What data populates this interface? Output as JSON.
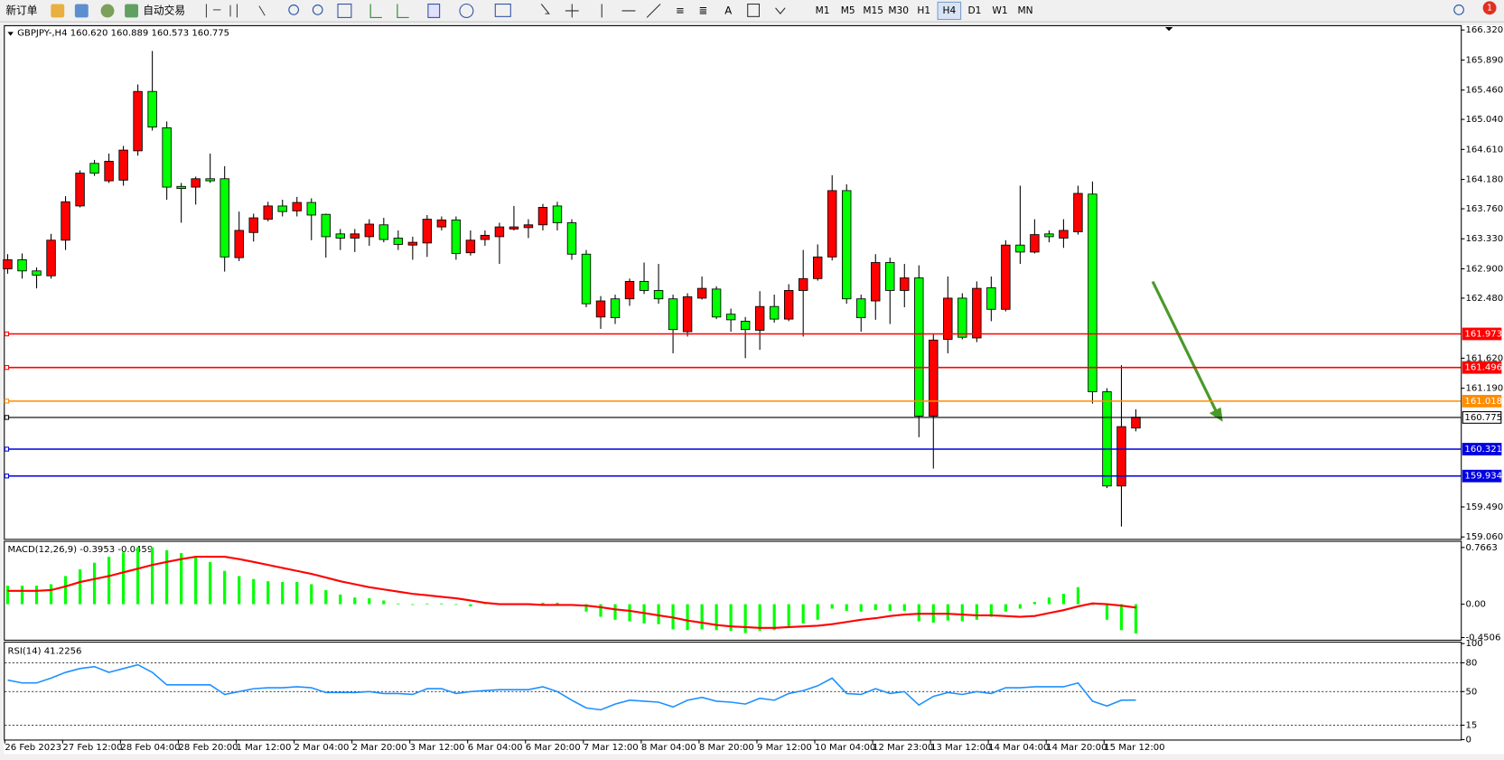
{
  "toolbar": {
    "new_order": "新订单",
    "auto_trading": "自动交易",
    "timeframes": [
      "M1",
      "M5",
      "M15",
      "M30",
      "H1",
      "H4",
      "D1",
      "W1",
      "MN"
    ],
    "active_timeframe": "H4",
    "notifications": "1"
  },
  "chart_data": [
    {
      "type": "candlestick",
      "title": "GBPJPY-,H4  160.620 160.889 160.573 160.775",
      "categories": [
        "26 Feb 2023",
        null,
        null,
        null,
        "27 Feb 12:00",
        null,
        null,
        null,
        "28 Feb 04:00",
        null,
        null,
        null,
        "28 Feb 20:00",
        null,
        null,
        null,
        "1 Mar 12:00",
        null,
        null,
        null,
        "2 Mar 04:00",
        null,
        null,
        null,
        "2 Mar 20:00",
        null,
        null,
        null,
        "3 Mar 12:00",
        null,
        null,
        null,
        "6 Mar 04:00",
        null,
        null,
        null,
        "6 Mar 20:00",
        null,
        null,
        null,
        "7 Mar 12:00",
        null,
        null,
        null,
        "8 Mar 04:00",
        null,
        null,
        null,
        "8 Mar 20:00",
        null,
        null,
        null,
        "9 Mar 12:00",
        null,
        null,
        null,
        "10 Mar 04:00",
        null,
        null,
        null,
        "12 Mar 23:00",
        null,
        null,
        null,
        "13 Mar 12:00",
        null,
        null,
        null,
        "14 Mar 04:00",
        null,
        null,
        null,
        "14 Mar 20:00",
        null,
        null,
        null,
        "15 Mar 12:00",
        null,
        null
      ],
      "open": [
        162.9,
        163.03,
        162.87,
        162.8,
        163.31,
        163.8,
        164.41,
        164.16,
        164.17,
        164.59,
        165.44,
        164.92,
        164.08,
        164.07,
        164.19,
        164.19,
        163.06,
        163.42,
        163.61,
        163.8,
        163.73,
        163.85,
        163.68,
        163.4,
        163.34,
        163.36,
        163.53,
        163.34,
        163.24,
        163.27,
        163.5,
        163.6,
        163.13,
        163.32,
        163.36,
        163.47,
        163.49,
        163.53,
        163.8,
        163.56,
        163.11,
        162.21,
        162.47,
        162.47,
        162.72,
        162.59,
        162.47,
        162.0,
        162.48,
        162.61,
        162.25,
        162.15,
        162.02,
        162.36,
        162.18,
        162.59,
        162.76,
        163.07,
        164.02,
        162.47,
        162.44,
        162.99,
        162.59,
        162.77,
        160.79,
        161.89,
        162.48,
        161.91,
        162.63,
        162.32,
        163.24,
        163.14,
        163.4,
        163.34,
        163.43,
        163.97,
        161.14,
        159.79,
        160.62
      ],
      "high": [
        163.11,
        163.12,
        162.92,
        163.4,
        163.94,
        164.31,
        164.46,
        164.55,
        164.66,
        165.54,
        166.02,
        165.01,
        164.13,
        164.22,
        164.55,
        164.37,
        163.72,
        163.69,
        163.86,
        163.89,
        163.93,
        163.91,
        163.69,
        163.47,
        163.47,
        163.61,
        163.63,
        163.45,
        163.36,
        163.67,
        163.65,
        163.65,
        163.45,
        163.45,
        163.56,
        163.8,
        163.61,
        163.83,
        163.86,
        163.61,
        163.17,
        162.51,
        162.53,
        162.76,
        162.99,
        162.97,
        162.53,
        162.55,
        162.79,
        162.65,
        162.33,
        162.21,
        162.58,
        162.53,
        162.68,
        163.17,
        163.25,
        164.24,
        164.11,
        162.53,
        163.11,
        163.06,
        162.97,
        162.95,
        161.96,
        162.79,
        162.55,
        162.72,
        162.79,
        163.31,
        164.09,
        163.61,
        163.45,
        163.61,
        164.09,
        164.15,
        161.19,
        161.52,
        160.889
      ],
      "low": [
        162.83,
        162.76,
        162.62,
        162.76,
        163.17,
        163.78,
        164.23,
        164.13,
        164.09,
        164.52,
        164.88,
        163.89,
        163.56,
        163.82,
        164.13,
        162.86,
        163.01,
        163.29,
        163.58,
        163.65,
        163.65,
        163.31,
        163.06,
        163.17,
        163.14,
        163.23,
        163.28,
        163.17,
        163.03,
        163.07,
        163.45,
        163.03,
        163.09,
        163.23,
        162.97,
        163.45,
        163.34,
        163.45,
        163.45,
        163.03,
        162.35,
        162.04,
        162.11,
        162.37,
        162.54,
        162.4,
        161.69,
        161.93,
        162.46,
        162.18,
        162.0,
        161.62,
        161.74,
        162.13,
        162.15,
        161.93,
        162.73,
        163.02,
        162.4,
        162.0,
        162.17,
        162.11,
        162.35,
        160.49,
        160.04,
        161.69,
        161.89,
        161.85,
        162.15,
        162.29,
        162.97,
        163.12,
        163.28,
        163.2,
        163.39,
        160.97,
        159.76,
        159.21,
        160.573
      ],
      "close": [
        163.03,
        162.87,
        162.81,
        163.31,
        163.86,
        164.27,
        164.27,
        164.44,
        164.6,
        165.44,
        164.93,
        164.07,
        164.05,
        164.19,
        164.16,
        163.07,
        163.45,
        163.63,
        163.8,
        163.72,
        163.85,
        163.67,
        163.36,
        163.34,
        163.4,
        163.54,
        163.32,
        163.25,
        163.28,
        163.61,
        163.6,
        163.12,
        163.31,
        163.38,
        163.5,
        163.5,
        163.53,
        163.78,
        163.56,
        163.11,
        162.4,
        162.44,
        162.2,
        162.72,
        162.59,
        162.47,
        162.03,
        162.5,
        162.62,
        162.21,
        162.17,
        162.03,
        162.36,
        162.18,
        162.59,
        162.76,
        163.07,
        164.02,
        162.47,
        162.2,
        162.99,
        162.59,
        162.77,
        160.79,
        161.88,
        162.48,
        161.92,
        162.62,
        162.32,
        163.24,
        163.14,
        163.39,
        163.36,
        163.45,
        163.98,
        161.14,
        159.79,
        160.64,
        160.775
      ],
      "up_color": "#ff0000",
      "down_color": "#00ff00",
      "ylim": [
        159.032,
        166.375
      ],
      "yticks": [
        {
          "value": 166.32,
          "label": "166.320"
        },
        {
          "value": 165.89,
          "label": "165.890"
        },
        {
          "value": 165.46,
          "label": "165.460"
        },
        {
          "value": 165.04,
          "label": "165.040"
        },
        {
          "value": 164.61,
          "label": "164.610"
        },
        {
          "value": 164.18,
          "label": "164.180"
        },
        {
          "value": 163.76,
          "label": "163.760"
        },
        {
          "value": 163.33,
          "label": "163.330"
        },
        {
          "value": 162.9,
          "label": "162.900"
        },
        {
          "value": 162.48,
          "label": "162.480"
        },
        {
          "value": 161.62,
          "label": "161.620"
        },
        {
          "value": 161.19,
          "label": "161.190"
        },
        {
          "value": 159.49,
          "label": "159.490"
        },
        {
          "value": 159.06,
          "label": "159.060"
        }
      ],
      "hlines": [
        {
          "value": 161.973,
          "color": "#ff0000"
        },
        {
          "value": 161.496,
          "color": "#ff0000"
        },
        {
          "value": 161.018,
          "color": "#ff8c00"
        },
        {
          "value": 160.775,
          "color": "#000000"
        },
        {
          "value": 160.321,
          "color": "#0000e0"
        },
        {
          "value": 159.934,
          "color": "#0000e0"
        }
      ]
    },
    {
      "type": "macd",
      "title": "MACD(12,26,9) -0.3953 -0.0459",
      "histogram": {
        "color": "#00ff00",
        "values": [
          0.25,
          0.25,
          0.25,
          0.27,
          0.38,
          0.47,
          0.56,
          0.64,
          0.7,
          0.77,
          0.77,
          0.73,
          0.69,
          0.64,
          0.57,
          0.45,
          0.38,
          0.34,
          0.31,
          0.3,
          0.3,
          0.27,
          0.19,
          0.13,
          0.09,
          0.08,
          0.05,
          0.01,
          -0.01,
          0.01,
          0.01,
          -0.01,
          -0.03,
          0.0,
          0.0,
          0.01,
          0.01,
          0.02,
          0.02,
          0.0,
          -0.1,
          -0.17,
          -0.21,
          -0.23,
          -0.26,
          -0.27,
          -0.34,
          -0.35,
          -0.34,
          -0.35,
          -0.36,
          -0.39,
          -0.36,
          -0.35,
          -0.31,
          -0.26,
          -0.21,
          -0.06,
          -0.09,
          -0.1,
          -0.08,
          -0.09,
          -0.09,
          -0.23,
          -0.25,
          -0.22,
          -0.23,
          -0.21,
          -0.17,
          -0.1,
          -0.06,
          0.03,
          0.09,
          0.14,
          0.23,
          -0.01,
          -0.21,
          -0.35,
          -0.3953
        ]
      },
      "signal": {
        "color": "#ff0000",
        "values": [
          0.18,
          0.18,
          0.18,
          0.19,
          0.24,
          0.3,
          0.34,
          0.38,
          0.43,
          0.48,
          0.53,
          0.57,
          0.61,
          0.64,
          0.64,
          0.64,
          0.61,
          0.57,
          0.53,
          0.49,
          0.45,
          0.41,
          0.36,
          0.31,
          0.27,
          0.23,
          0.2,
          0.17,
          0.14,
          0.12,
          0.1,
          0.08,
          0.05,
          0.02,
          0.0,
          0.0,
          0.0,
          -0.01,
          -0.01,
          -0.01,
          -0.02,
          -0.04,
          -0.07,
          -0.09,
          -0.12,
          -0.15,
          -0.18,
          -0.22,
          -0.25,
          -0.28,
          -0.3,
          -0.31,
          -0.32,
          -0.32,
          -0.31,
          -0.3,
          -0.29,
          -0.27,
          -0.24,
          -0.21,
          -0.19,
          -0.16,
          -0.14,
          -0.13,
          -0.13,
          -0.13,
          -0.14,
          -0.15,
          -0.15,
          -0.16,
          -0.17,
          -0.16,
          -0.12,
          -0.08,
          -0.03,
          0.01,
          0.0,
          -0.02,
          -0.0459
        ]
      },
      "ylim": [
        -0.48,
        0.83
      ],
      "yticks": [
        0.7663,
        {
          "value": 0,
          "label": "0.00"
        },
        -0.4506
      ]
    },
    {
      "type": "line",
      "title": "RSI(14) 41.2256",
      "color": "#1e90ff",
      "values": [
        62,
        59,
        59,
        64,
        70,
        74,
        76,
        70,
        74,
        78,
        70,
        57,
        57,
        57,
        57,
        47,
        50,
        53,
        54,
        54,
        55,
        54,
        49,
        49,
        49,
        50,
        48,
        48,
        47,
        53,
        53,
        48,
        50,
        51,
        52,
        52,
        52,
        55,
        50,
        41,
        33,
        31,
        37,
        41,
        40,
        39,
        34,
        41,
        44,
        40,
        39,
        37,
        43,
        41,
        48,
        51,
        56,
        64,
        48,
        47,
        53,
        48,
        50,
        36,
        45,
        49,
        47,
        50,
        48,
        54,
        54,
        55,
        55,
        55,
        59,
        40,
        35,
        41,
        41.2256
      ],
      "ylim": [
        0,
        100
      ],
      "yticks": [
        0,
        15,
        50,
        80,
        100
      ],
      "levels": [
        15,
        50,
        80
      ]
    }
  ]
}
